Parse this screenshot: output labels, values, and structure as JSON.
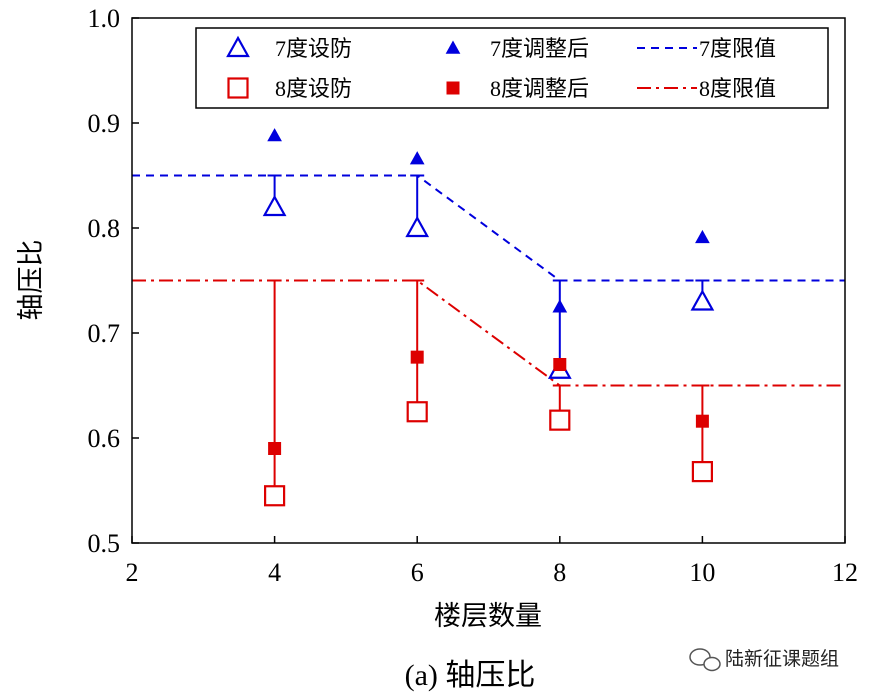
{
  "chart_data": {
    "type": "scatter",
    "xlabel": "楼层数量",
    "ylabel": "轴压比",
    "xlim": [
      2,
      12
    ],
    "ylim": [
      0.5,
      1.0
    ],
    "xticks": [
      "2",
      "4",
      "6",
      "8",
      "10",
      "12"
    ],
    "yticks": [
      "0.5",
      "0.6",
      "0.7",
      "0.8",
      "0.9",
      "1.0"
    ],
    "grid": false,
    "legend_position": "top",
    "series": [
      {
        "name": "7度设防",
        "marker": "triangle-open",
        "color": "#0000dd",
        "points": [
          {
            "x": 4,
            "y": 0.82
          },
          {
            "x": 6,
            "y": 0.8
          },
          {
            "x": 8,
            "y": 0.665
          },
          {
            "x": 10,
            "y": 0.73
          }
        ]
      },
      {
        "name": "7度调整后",
        "marker": "triangle-filled",
        "color": "#0000dd",
        "points": [
          {
            "x": 4,
            "y": 0.888
          },
          {
            "x": 6,
            "y": 0.866
          },
          {
            "x": 8,
            "y": 0.725
          },
          {
            "x": 10,
            "y": 0.791
          }
        ]
      },
      {
        "name": "7度限值",
        "line": "dashed",
        "color": "#0000dd",
        "points": [
          {
            "x": 2,
            "y": 0.85
          },
          {
            "x": 6,
            "y": 0.85
          },
          {
            "x": 8,
            "y": 0.75
          },
          {
            "x": 12,
            "y": 0.75
          }
        ]
      },
      {
        "name": "8度设防",
        "marker": "square-open",
        "color": "#dd0000",
        "points": [
          {
            "x": 4,
            "y": 0.545
          },
          {
            "x": 6,
            "y": 0.625
          },
          {
            "x": 8,
            "y": 0.617
          },
          {
            "x": 10,
            "y": 0.568
          }
        ]
      },
      {
        "name": "8度调整后",
        "marker": "square-filled",
        "color": "#dd0000",
        "points": [
          {
            "x": 4,
            "y": 0.59
          },
          {
            "x": 6,
            "y": 0.677
          },
          {
            "x": 8,
            "y": 0.67
          },
          {
            "x": 10,
            "y": 0.616
          }
        ]
      },
      {
        "name": "8度限值",
        "line": "dashdot",
        "color": "#dd0000",
        "points": [
          {
            "x": 2,
            "y": 0.75
          },
          {
            "x": 6,
            "y": 0.75
          },
          {
            "x": 8,
            "y": 0.65
          },
          {
            "x": 12,
            "y": 0.65
          }
        ]
      }
    ],
    "error_bars": [
      {
        "color": "#0000dd",
        "x": 4,
        "from": 0.82,
        "to": 0.85
      },
      {
        "color": "#0000dd",
        "x": 6,
        "from": 0.8,
        "to": 0.85
      },
      {
        "color": "#0000dd",
        "x": 8,
        "from": 0.665,
        "to": 0.75
      },
      {
        "color": "#0000dd",
        "x": 10,
        "from": 0.73,
        "to": 0.75
      },
      {
        "color": "#dd0000",
        "x": 4,
        "from": 0.545,
        "to": 0.75
      },
      {
        "color": "#dd0000",
        "x": 6,
        "from": 0.625,
        "to": 0.75
      },
      {
        "color": "#dd0000",
        "x": 8,
        "from": 0.617,
        "to": 0.65
      },
      {
        "color": "#dd0000",
        "x": 10,
        "from": 0.568,
        "to": 0.65
      }
    ]
  },
  "caption": "(a)  轴压比",
  "watermark": "陆新征课题组"
}
